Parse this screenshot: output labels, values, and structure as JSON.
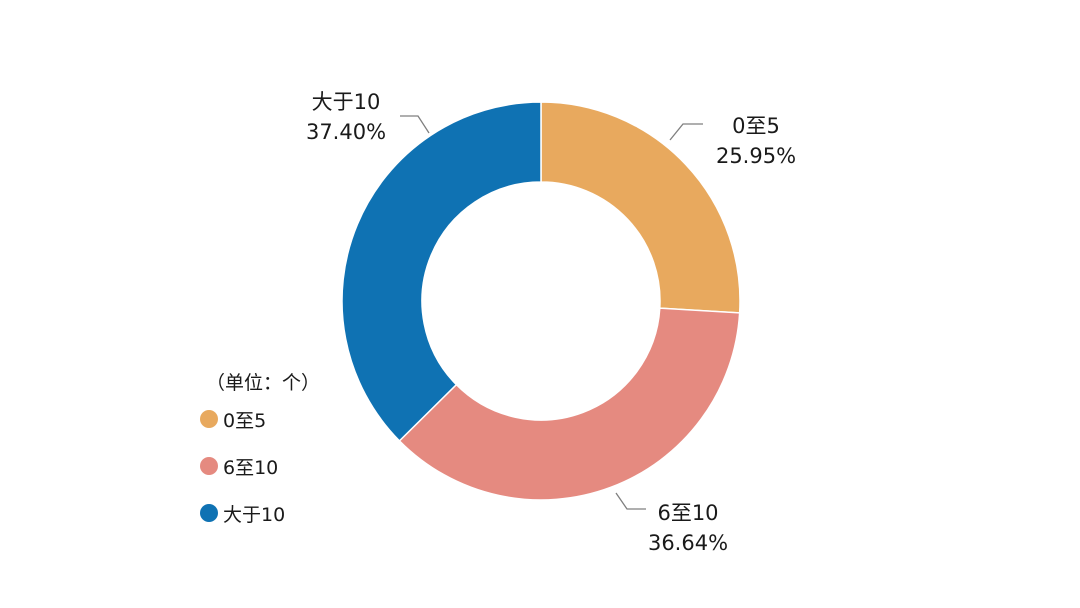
{
  "chart_data": {
    "type": "pie",
    "variant": "donut",
    "unit_note": "（单位：个）",
    "slices": [
      {
        "label": "0至5",
        "value": 25.95,
        "value_label": "25.95%",
        "color": "#E8A95E"
      },
      {
        "label": "6至10",
        "value": 36.64,
        "value_label": "36.64%",
        "color": "#E58A80"
      },
      {
        "label": "大于10",
        "value": 37.4,
        "value_label": "37.40%",
        "color": "#0F72B3"
      }
    ],
    "legend_position": "bottom-left"
  }
}
